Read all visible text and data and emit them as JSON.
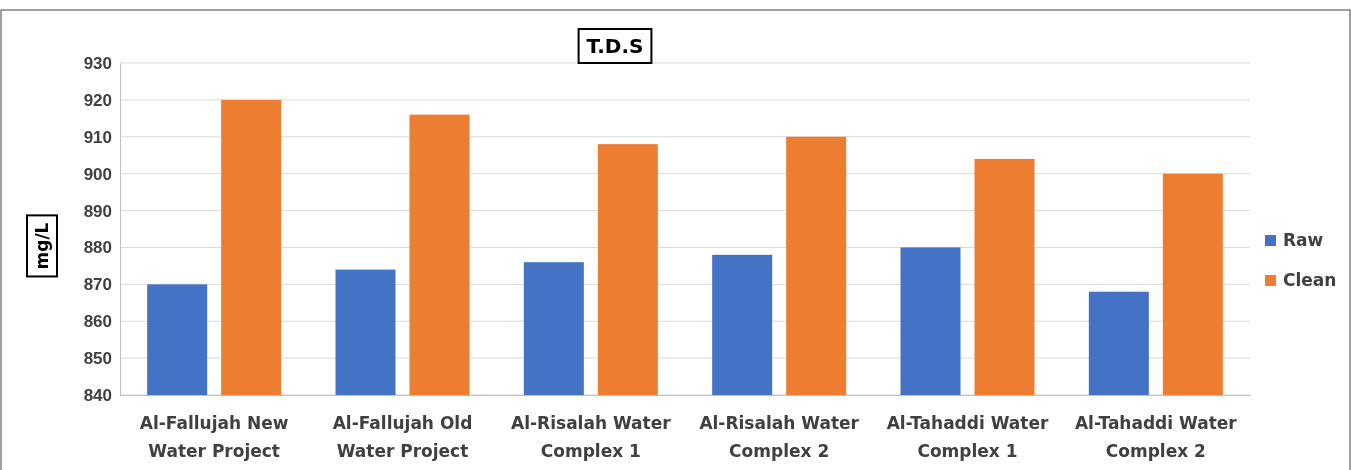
{
  "chart_data": {
    "type": "bar",
    "title": "T.D.S",
    "ylabel": "mg/L",
    "categories": [
      "Al-Fallujah New Water Project",
      "Al-Fallujah Old Water Project",
      "Al-Risalah Water Complex 1",
      "Al-Risalah Water Complex 2",
      "Al-Tahaddi Water Complex 1",
      "Al-Tahaddi Water Complex 2"
    ],
    "series": [
      {
        "name": "Raw",
        "color": "#4472c4",
        "values": [
          870,
          874,
          876,
          878,
          880,
          868
        ]
      },
      {
        "name": "Clean",
        "color": "#ed7d31",
        "values": [
          920,
          916,
          908,
          910,
          904,
          900
        ]
      }
    ],
    "ylim": [
      840,
      930
    ],
    "yticks": [
      840,
      850,
      860,
      870,
      880,
      890,
      900,
      910,
      920,
      930
    ],
    "grid": "y",
    "legend": "right"
  }
}
